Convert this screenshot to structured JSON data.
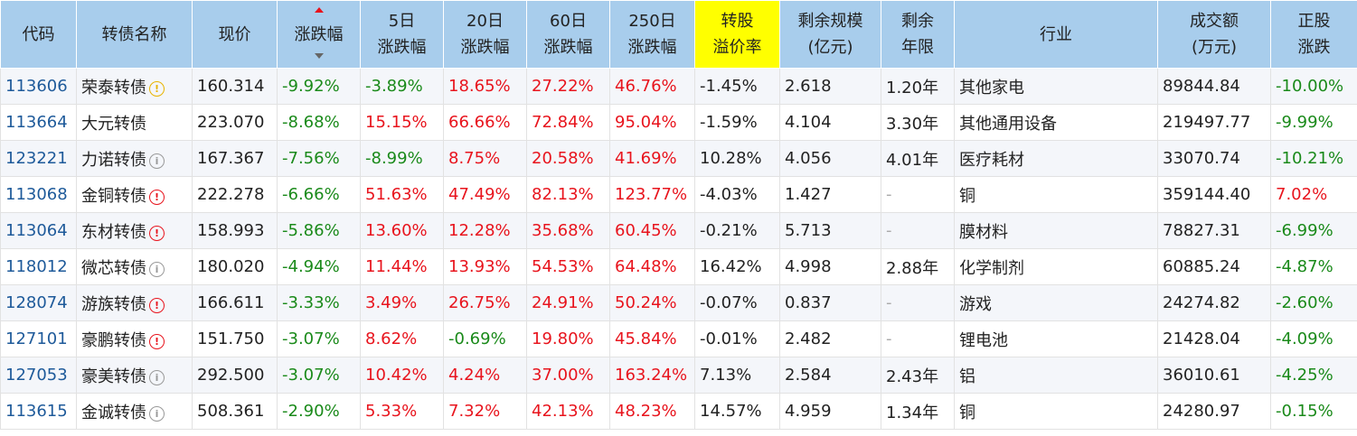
{
  "headers": [
    {
      "key": "code",
      "label": "代码"
    },
    {
      "key": "name",
      "label": "转债名称"
    },
    {
      "key": "price",
      "label": "现价"
    },
    {
      "key": "chg",
      "label": "涨跌幅"
    },
    {
      "key": "chg5",
      "label": "5日\n涨跌幅"
    },
    {
      "key": "chg20",
      "label": "20日\n涨跌幅"
    },
    {
      "key": "chg60",
      "label": "60日\n涨跌幅"
    },
    {
      "key": "chg250",
      "label": "250日\n涨跌幅"
    },
    {
      "key": "premium",
      "label": "转股\n溢价率"
    },
    {
      "key": "scale",
      "label": "剩余规模\n(亿元)"
    },
    {
      "key": "years",
      "label": "剩余\n年限"
    },
    {
      "key": "industry",
      "label": "行业"
    },
    {
      "key": "volume",
      "label": "成交额\n(万元)"
    },
    {
      "key": "stock_chg",
      "label": "正股\n涨跌"
    }
  ],
  "sort_column": "chg",
  "highlight_column": "premium",
  "colors": {
    "header_bg": "#a8cdec",
    "highlight": "#ffff00",
    "up": "#e8141d",
    "down": "#1a8a1a",
    "code": "#1e5a9a"
  },
  "rows": [
    {
      "code": "113606",
      "name": "荣泰转债",
      "icon": "warn",
      "price": "160.314",
      "chg": "-9.92%",
      "chg5": "-3.89%",
      "chg20": "18.65%",
      "chg60": "27.22%",
      "chg250": "46.76%",
      "premium": "-1.45%",
      "scale": "2.618",
      "years": "1.20年",
      "industry": "其他家电",
      "volume": "89844.84",
      "stock_chg": "-10.00%"
    },
    {
      "code": "113664",
      "name": "大元转债",
      "icon": "none",
      "price": "223.070",
      "chg": "-8.68%",
      "chg5": "15.15%",
      "chg20": "66.66%",
      "chg60": "72.84%",
      "chg250": "95.04%",
      "premium": "-1.59%",
      "scale": "4.104",
      "years": "3.30年",
      "industry": "其他通用设备",
      "volume": "219497.77",
      "stock_chg": "-9.99%"
    },
    {
      "code": "123221",
      "name": "力诺转债",
      "icon": "info",
      "price": "167.367",
      "chg": "-7.56%",
      "chg5": "-8.99%",
      "chg20": "8.75%",
      "chg60": "20.58%",
      "chg250": "41.69%",
      "premium": "10.28%",
      "scale": "4.056",
      "years": "4.01年",
      "industry": "医疗耗材",
      "volume": "33070.74",
      "stock_chg": "-10.21%"
    },
    {
      "code": "113068",
      "name": "金铜转债",
      "icon": "alert",
      "price": "222.278",
      "chg": "-6.66%",
      "chg5": "51.63%",
      "chg20": "47.49%",
      "chg60": "82.13%",
      "chg250": "123.77%",
      "premium": "-4.03%",
      "scale": "1.427",
      "years": "-",
      "industry": "铜",
      "volume": "359144.40",
      "stock_chg": "7.02%"
    },
    {
      "code": "113064",
      "name": "东材转债",
      "icon": "alert",
      "price": "158.993",
      "chg": "-5.86%",
      "chg5": "13.60%",
      "chg20": "12.28%",
      "chg60": "35.68%",
      "chg250": "60.45%",
      "premium": "-0.21%",
      "scale": "5.713",
      "years": "-",
      "industry": "膜材料",
      "volume": "78827.31",
      "stock_chg": "-6.99%"
    },
    {
      "code": "118012",
      "name": "微芯转债",
      "icon": "info",
      "price": "180.020",
      "chg": "-4.94%",
      "chg5": "11.44%",
      "chg20": "13.93%",
      "chg60": "54.53%",
      "chg250": "64.48%",
      "premium": "16.42%",
      "scale": "4.998",
      "years": "2.88年",
      "industry": "化学制剂",
      "volume": "60885.24",
      "stock_chg": "-4.87%"
    },
    {
      "code": "128074",
      "name": "游族转债",
      "icon": "alert",
      "price": "166.611",
      "chg": "-3.33%",
      "chg5": "3.49%",
      "chg20": "26.75%",
      "chg60": "24.91%",
      "chg250": "50.24%",
      "premium": "-0.07%",
      "scale": "0.837",
      "years": "-",
      "industry": "游戏",
      "volume": "24274.82",
      "stock_chg": "-2.60%"
    },
    {
      "code": "127101",
      "name": "豪鹏转债",
      "icon": "alert",
      "price": "151.750",
      "chg": "-3.07%",
      "chg5": "8.62%",
      "chg20": "-0.69%",
      "chg60": "19.80%",
      "chg250": "45.84%",
      "premium": "-0.01%",
      "scale": "2.482",
      "years": "-",
      "industry": "锂电池",
      "volume": "21428.04",
      "stock_chg": "-4.09%"
    },
    {
      "code": "127053",
      "name": "豪美转债",
      "icon": "info",
      "price": "292.500",
      "chg": "-3.07%",
      "chg5": "10.42%",
      "chg20": "4.24%",
      "chg60": "37.00%",
      "chg250": "163.24%",
      "premium": "7.13%",
      "scale": "2.584",
      "years": "2.43年",
      "industry": "铝",
      "volume": "36010.61",
      "stock_chg": "-4.25%"
    },
    {
      "code": "113615",
      "name": "金诚转债",
      "icon": "info",
      "price": "508.361",
      "chg": "-2.90%",
      "chg5": "5.33%",
      "chg20": "7.32%",
      "chg60": "42.13%",
      "chg250": "48.23%",
      "premium": "14.57%",
      "scale": "4.959",
      "years": "1.34年",
      "industry": "铜",
      "volume": "24280.97",
      "stock_chg": "-0.15%"
    }
  ]
}
